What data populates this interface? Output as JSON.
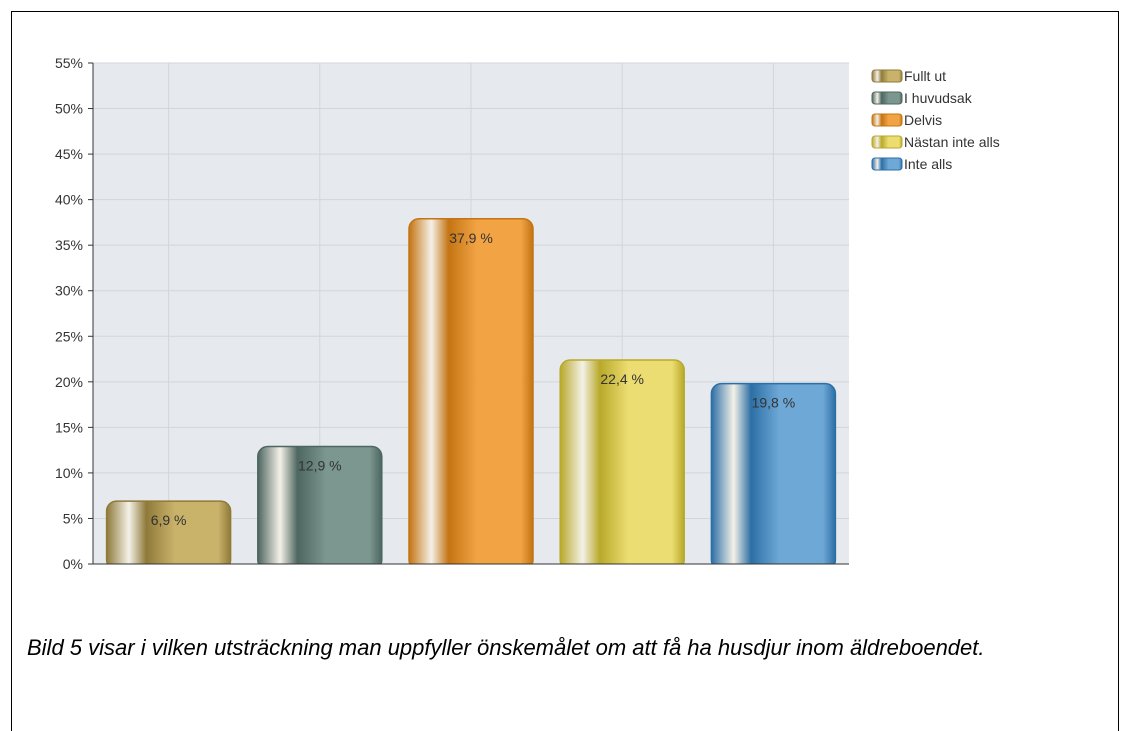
{
  "chart_data": {
    "type": "bar",
    "categories": [
      "Fullt ut",
      "I huvudsak",
      "Delvis",
      "Nästan inte alls",
      "Inte alls"
    ],
    "values": [
      6.9,
      12.9,
      37.9,
      22.4,
      19.8
    ],
    "value_labels": [
      "6,9 %",
      "12,9 %",
      "37,9 %",
      "22,4 %",
      "19,8 %"
    ],
    "yticks": [
      "0%",
      "5%",
      "10%",
      "15%",
      "20%",
      "25%",
      "30%",
      "35%",
      "40%",
      "45%",
      "50%",
      "55%"
    ],
    "ylim": [
      0,
      55
    ],
    "grid": true,
    "legend_position": "right",
    "legend": [
      "Fullt ut",
      "I huvudsak",
      "Delvis",
      "Nästan inte alls",
      "Inte alls"
    ],
    "colors": [
      "#c9b26a",
      "#7c9690",
      "#f2a445",
      "#ecdd72",
      "#6ea8d6"
    ],
    "dark_colors": [
      "#8f7a3a",
      "#4d6660",
      "#c47412",
      "#b8a92a",
      "#2c6fa6"
    ]
  },
  "caption": "Bild 5 visar i vilken utsträckning man uppfyller önskemålet om att få ha husdjur inom äldreboendet."
}
